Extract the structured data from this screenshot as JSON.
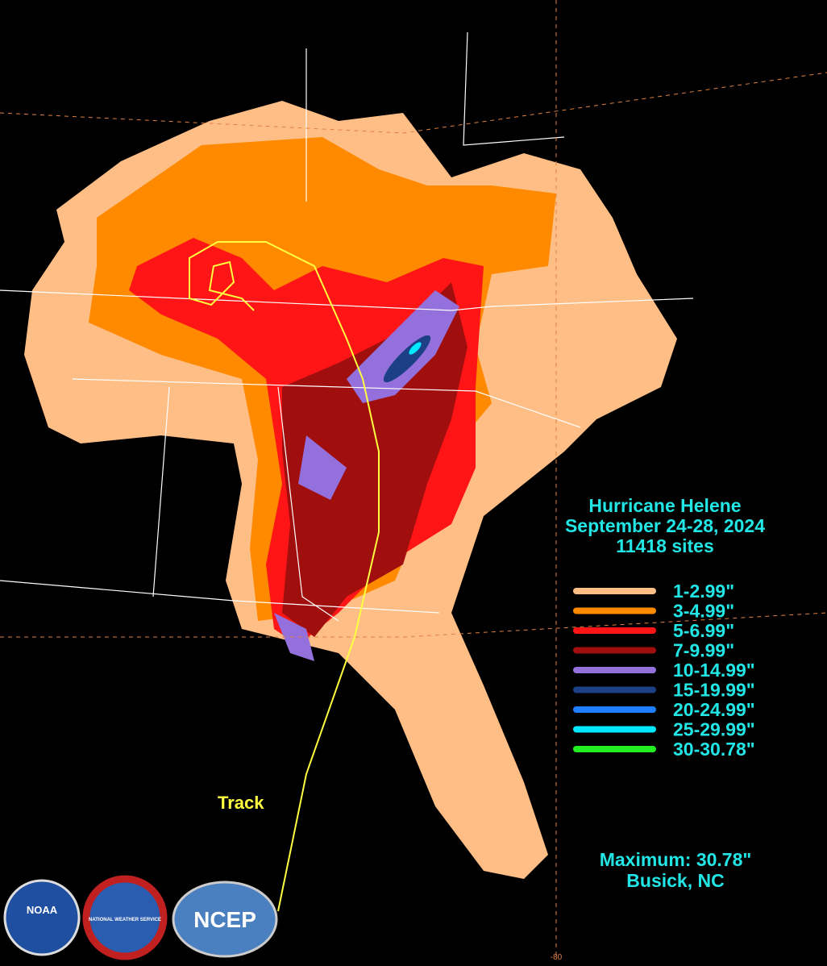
{
  "title": {
    "lines": [
      "Hurricane Helene",
      "September 24-28, 2024",
      "11418 sites"
    ]
  },
  "legend": {
    "items": [
      {
        "label": "1-2.99\"",
        "color": "#ffbe86"
      },
      {
        "label": "3-4.99\"",
        "color": "#ff8a00"
      },
      {
        "label": "5-6.99\"",
        "color": "#ff1515"
      },
      {
        "label": "7-9.99\"",
        "color": "#a00e0e"
      },
      {
        "label": "10-14.99\"",
        "color": "#9370db"
      },
      {
        "label": "15-19.99\"",
        "color": "#1d3f86"
      },
      {
        "label": "20-24.99\"",
        "color": "#1e7fff"
      },
      {
        "label": "25-29.99\"",
        "color": "#00e8ff"
      },
      {
        "label": "30-30.78\"",
        "color": "#22ee22"
      }
    ]
  },
  "track_label": "Track",
  "maximum": {
    "text": "Maximum:  30.78\"",
    "location": "Busick, NC"
  },
  "logos": [
    "NOAA",
    "NATIONAL WEATHER SERVICE",
    "NCEP"
  ],
  "longitude_label": "-80"
}
